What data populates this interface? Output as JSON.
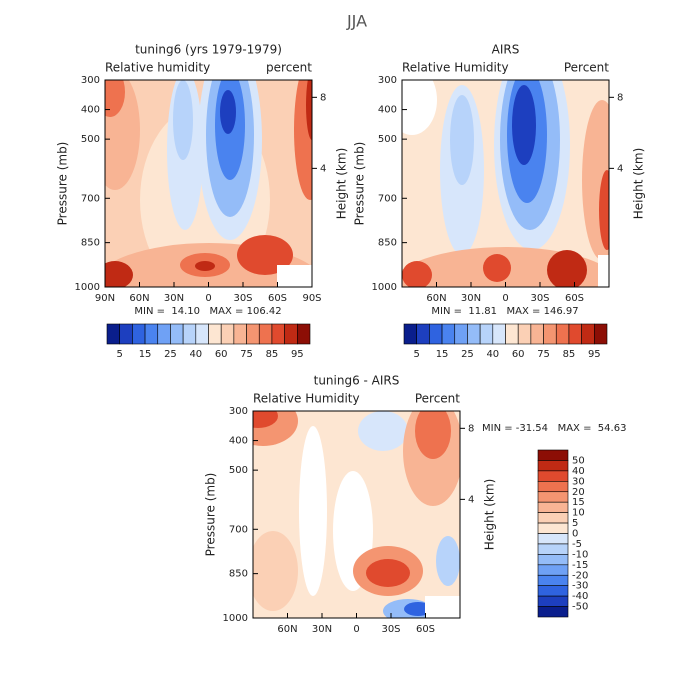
{
  "suptitle": "JJA",
  "chart_data": [
    {
      "type": "contour",
      "title": "tuning6 (yrs 1979-1979)",
      "left_label": "Relative humidity",
      "right_label": "percent",
      "y_label": "Pressure (mb)",
      "y2_label": "Height (km)",
      "stats": "MIN =  14.10   MAX = 106.42",
      "xlim": [
        90,
        -90
      ],
      "xticks": [
        {
          "value": 90,
          "label": "90N"
        },
        {
          "value": 60,
          "label": "60N"
        },
        {
          "value": 30,
          "label": "30N"
        },
        0,
        {
          "value": -30,
          "label": "30S"
        },
        {
          "value": -60,
          "label": "60S"
        },
        {
          "value": -90,
          "label": "90S"
        }
      ],
      "ylim": [
        1000,
        300
      ],
      "yticks": [
        300,
        400,
        500,
        700,
        850,
        1000
      ],
      "y2ticks": [
        4,
        8
      ],
      "colorbar": {
        "orientation": "horizontal",
        "ticks": [
          5,
          15,
          25,
          40,
          60,
          75,
          85,
          95
        ],
        "colors": [
          "#0a1e8c",
          "#1d3fbf",
          "#2f63e0",
          "#4a83ef",
          "#6fa1f5",
          "#94bcf8",
          "#b7d3fa",
          "#d7e6fb",
          "#fde6d2",
          "#fbd0b5",
          "#f8b494",
          "#f49571",
          "#ee724f",
          "#e04a2e",
          "#c02a14",
          "#8c0e05"
        ]
      }
    },
    {
      "type": "contour",
      "title": "AIRS",
      "left_label": "Relative Humidity",
      "right_label": "Percent",
      "y_label": "Pressure (mb)",
      "y2_label": "Height (km)",
      "stats": "MIN =  11.81   MAX = 146.97",
      "xlim": [
        90,
        -90
      ],
      "xticks": [
        {
          "value": 60,
          "label": "60N"
        },
        {
          "value": 30,
          "label": "30N"
        },
        0,
        {
          "value": -30,
          "label": "30S"
        },
        {
          "value": -60,
          "label": "60S"
        }
      ],
      "ylim": [
        1000,
        300
      ],
      "yticks": [
        300,
        400,
        500,
        700,
        850,
        1000
      ],
      "y2ticks": [
        4,
        8
      ],
      "colorbar": {
        "orientation": "horizontal",
        "ticks": [
          5,
          15,
          25,
          40,
          60,
          75,
          85,
          95
        ],
        "colors": [
          "#0a1e8c",
          "#1d3fbf",
          "#2f63e0",
          "#4a83ef",
          "#6fa1f5",
          "#94bcf8",
          "#b7d3fa",
          "#d7e6fb",
          "#fde6d2",
          "#fbd0b5",
          "#f8b494",
          "#f49571",
          "#ee724f",
          "#e04a2e",
          "#c02a14",
          "#8c0e05"
        ]
      }
    },
    {
      "type": "contour",
      "title": "tuning6 - AIRS",
      "left_label": "Relative Humidity",
      "right_label": "Percent",
      "y_label": "Pressure (mb)",
      "y2_label": "Height (km)",
      "stats": "MIN = -31.54   MAX =  54.63",
      "xlim": [
        90,
        -90
      ],
      "xticks": [
        {
          "value": 60,
          "label": "60N"
        },
        {
          "value": 30,
          "label": "30N"
        },
        0,
        {
          "value": -30,
          "label": "30S"
        },
        {
          "value": -60,
          "label": "60S"
        }
      ],
      "ylim": [
        1000,
        300
      ],
      "yticks": [
        300,
        400,
        500,
        700,
        850,
        1000
      ],
      "y2ticks": [
        4,
        8
      ],
      "colorbar": {
        "orientation": "vertical",
        "ticks": [
          50,
          40,
          30,
          20,
          15,
          10,
          5,
          0,
          -5,
          -10,
          -15,
          -20,
          -30,
          -40,
          -50
        ],
        "colors": [
          "#8c0e05",
          "#c02a14",
          "#e04a2e",
          "#ee724f",
          "#f49571",
          "#f8b494",
          "#fbd0b5",
          "#fde6d2",
          "#d7e6fb",
          "#b7d3fa",
          "#94bcf8",
          "#6fa1f5",
          "#4a83ef",
          "#2f63e0",
          "#1d3fbf",
          "#0a1e8c"
        ]
      }
    }
  ]
}
